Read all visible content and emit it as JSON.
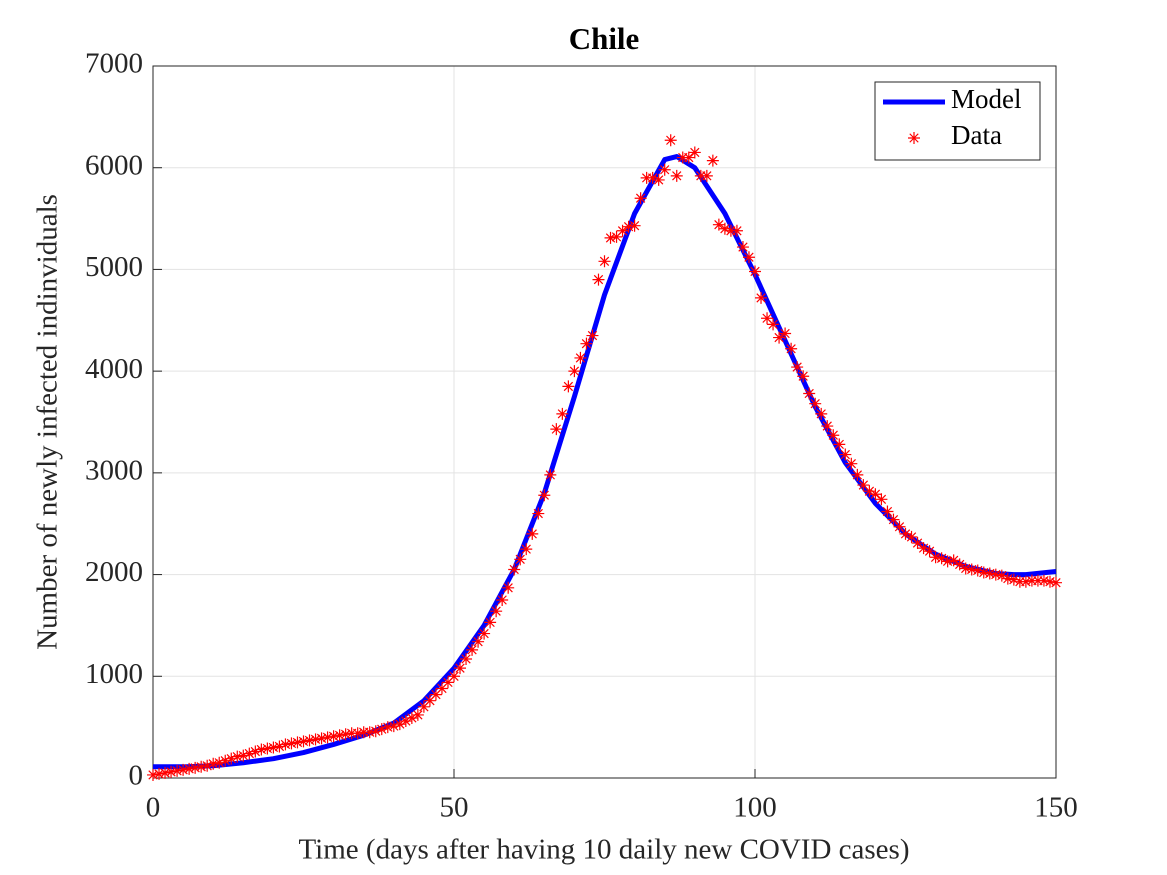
{
  "chart_data": {
    "type": "line",
    "title": "Chile",
    "xlabel": "Time (days after having 10 daily new COVID cases)",
    "ylabel": "Number of newly infected indinviduals",
    "xlim": [
      0,
      150
    ],
    "ylim": [
      0,
      7000
    ],
    "xticks": [
      0,
      50,
      100,
      150
    ],
    "yticks": [
      0,
      1000,
      2000,
      3000,
      4000,
      5000,
      6000,
      7000
    ],
    "grid": true,
    "legend": "upper right",
    "series": [
      {
        "name": "Model",
        "color": "#0000ff",
        "type": "line",
        "x": [
          0,
          5,
          10,
          15,
          20,
          25,
          30,
          35,
          40,
          45,
          50,
          55,
          60,
          65,
          70,
          75,
          80,
          85,
          87,
          90,
          95,
          100,
          105,
          110,
          115,
          120,
          125,
          130,
          135,
          140,
          143,
          145,
          150
        ],
        "values": [
          110,
          110,
          120,
          150,
          190,
          250,
          330,
          420,
          540,
          760,
          1080,
          1500,
          2050,
          2800,
          3750,
          4750,
          5550,
          6080,
          6110,
          6000,
          5550,
          4950,
          4300,
          3650,
          3100,
          2700,
          2400,
          2200,
          2080,
          2010,
          2000,
          2000,
          2030
        ]
      },
      {
        "name": "Data",
        "color": "#ff0000",
        "type": "scatter",
        "x": [
          0,
          1,
          2,
          3,
          4,
          5,
          6,
          7,
          8,
          9,
          10,
          11,
          12,
          13,
          14,
          15,
          16,
          17,
          18,
          19,
          20,
          21,
          22,
          23,
          24,
          25,
          26,
          27,
          28,
          29,
          30,
          31,
          32,
          33,
          34,
          35,
          36,
          37,
          38,
          39,
          40,
          41,
          42,
          43,
          44,
          45,
          46,
          47,
          48,
          49,
          50,
          51,
          52,
          53,
          54,
          55,
          56,
          57,
          58,
          59,
          60,
          61,
          62,
          63,
          64,
          65,
          66,
          67,
          68,
          69,
          70,
          71,
          72,
          73,
          74,
          75,
          76,
          77,
          78,
          79,
          80,
          81,
          82,
          83,
          84,
          85,
          86,
          87,
          88,
          89,
          90,
          91,
          92,
          93,
          94,
          95,
          96,
          97,
          98,
          99,
          100,
          101,
          102,
          103,
          104,
          105,
          106,
          107,
          108,
          109,
          110,
          111,
          112,
          113,
          114,
          115,
          116,
          117,
          118,
          119,
          120,
          121,
          122,
          123,
          124,
          125,
          126,
          127,
          128,
          129,
          130,
          131,
          132,
          133,
          134,
          135,
          136,
          137,
          138,
          139,
          140,
          141,
          142,
          143,
          144,
          145,
          146,
          147,
          148,
          149,
          150
        ],
        "values": [
          30,
          40,
          50,
          60,
          70,
          80,
          90,
          100,
          110,
          120,
          140,
          150,
          170,
          190,
          210,
          220,
          240,
          260,
          280,
          290,
          300,
          310,
          330,
          340,
          350,
          360,
          370,
          380,
          390,
          400,
          410,
          420,
          430,
          440,
          440,
          450,
          450,
          460,
          480,
          500,
          510,
          530,
          560,
          590,
          620,
          700,
          760,
          820,
          880,
          940,
          1000,
          1080,
          1170,
          1260,
          1340,
          1420,
          1530,
          1640,
          1750,
          1870,
          2050,
          2150,
          2250,
          2400,
          2600,
          2780,
          2980,
          3430,
          3580,
          3850,
          4000,
          4130,
          4270,
          4350,
          4900,
          5080,
          5310,
          5320,
          5380,
          5420,
          5430,
          5700,
          5900,
          5900,
          5880,
          5980,
          6270,
          5920,
          6100,
          6100,
          6150,
          5920,
          5920,
          6070,
          5440,
          5400,
          5380,
          5380,
          5220,
          5120,
          4980,
          4720,
          4520,
          4460,
          4330,
          4370,
          4220,
          4040,
          3950,
          3780,
          3680,
          3580,
          3460,
          3370,
          3280,
          3180,
          3090,
          2980,
          2880,
          2820,
          2790,
          2740,
          2620,
          2540,
          2470,
          2400,
          2370,
          2310,
          2260,
          2230,
          2170,
          2160,
          2130,
          2140,
          2100,
          2060,
          2050,
          2040,
          2020,
          2010,
          2000,
          1990,
          1960,
          1950,
          1930,
          1930,
          1940,
          1940,
          1940,
          1930,
          1920
        ]
      }
    ]
  }
}
